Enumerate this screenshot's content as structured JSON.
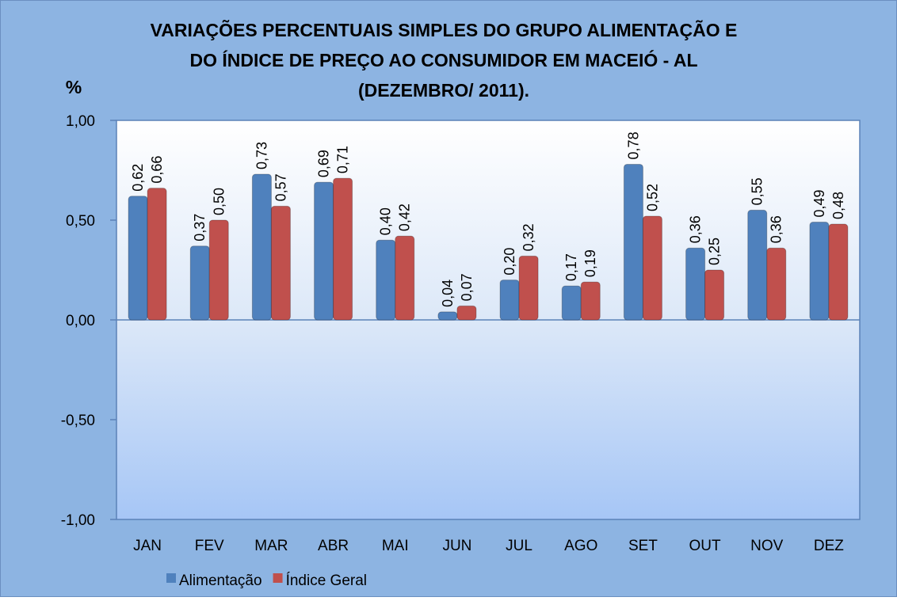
{
  "chart_data": {
    "type": "bar",
    "title": [
      "VARIAÇÕES PERCENTUAIS SIMPLES DO GRUPO ALIMENTAÇÃO E",
      "DO ÍNDICE DE PREÇO AO CONSUMIDOR EM MACEIÓ - AL",
      "(DEZEMBRO/ 2011)."
    ],
    "y_label": "%",
    "categories": [
      "JAN",
      "FEV",
      "MAR",
      "ABR",
      "MAI",
      "JUN",
      "JUL",
      "AGO",
      "SET",
      "OUT",
      "NOV",
      "DEZ"
    ],
    "series": [
      {
        "name": "Alimentação",
        "color": "#4f81bd",
        "values": [
          0.62,
          0.37,
          0.73,
          0.69,
          0.4,
          0.04,
          0.2,
          0.17,
          0.78,
          0.36,
          0.55,
          0.49
        ],
        "value_labels": [
          "0,62",
          "0,37",
          "0,73",
          "0,69",
          "0,40",
          "0,04",
          "0,20",
          "0,17",
          "0,78",
          "0,36",
          "0,55",
          "0,49"
        ]
      },
      {
        "name": "Índice Geral",
        "color": "#c0504d",
        "values": [
          0.66,
          0.5,
          0.57,
          0.71,
          0.42,
          0.07,
          0.32,
          0.19,
          0.52,
          0.25,
          0.36,
          0.48
        ],
        "value_labels": [
          "0,66",
          "0,50",
          "0,57",
          "0,71",
          "0,42",
          "0,07",
          "0,32",
          "0,19",
          "0,52",
          "0,25",
          "0,36",
          "0,48"
        ]
      }
    ],
    "ylim": [
      -1,
      1
    ],
    "yticks": [
      {
        "value": -1,
        "label": "-1,00"
      },
      {
        "value": -0.5,
        "label": "-0,50"
      },
      {
        "value": 0,
        "label": "0,00"
      },
      {
        "value": 0.5,
        "label": "0,50"
      },
      {
        "value": 1,
        "label": "1,00"
      }
    ],
    "legend": "bottom-left"
  }
}
